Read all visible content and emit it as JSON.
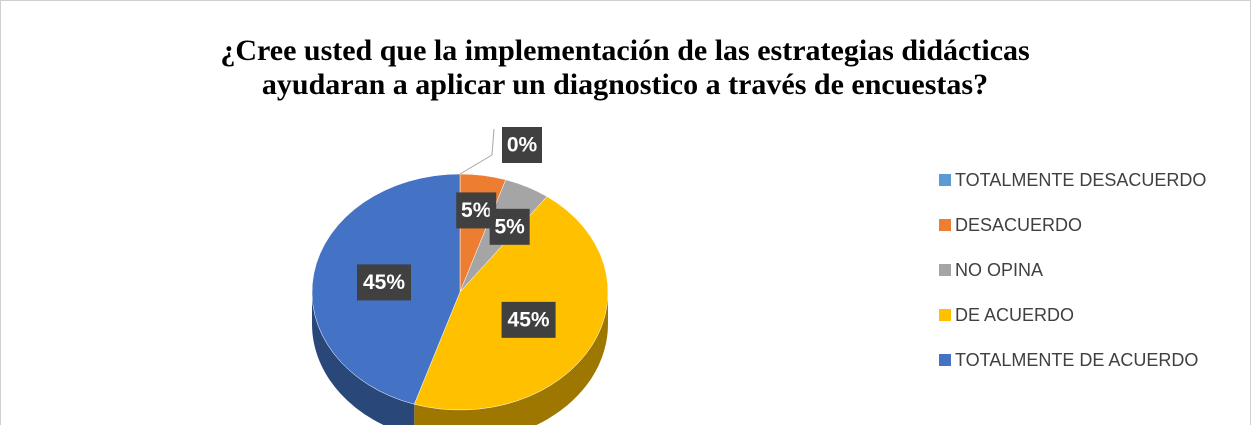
{
  "chart_data": {
    "type": "pie",
    "title": "¿Cree usted que la implementación de las estrategias didácticas ayudaran a aplicar un diagnostico a través de encuestas?",
    "categories": [
      "TOTALMENTE DESACUERDO",
      "DESACUERDO",
      "NO OPINA",
      "DE ACUERDO",
      "TOTALMENTE DE ACUERDO"
    ],
    "values": [
      0,
      5,
      5,
      45,
      45
    ],
    "value_labels": [
      "0%",
      "5%",
      "5%",
      "45%",
      "45%"
    ],
    "colors": [
      "#5b9bd5",
      "#ed7d31",
      "#a5a5a5",
      "#ffc000",
      "#4472c4"
    ],
    "legend": "right"
  }
}
